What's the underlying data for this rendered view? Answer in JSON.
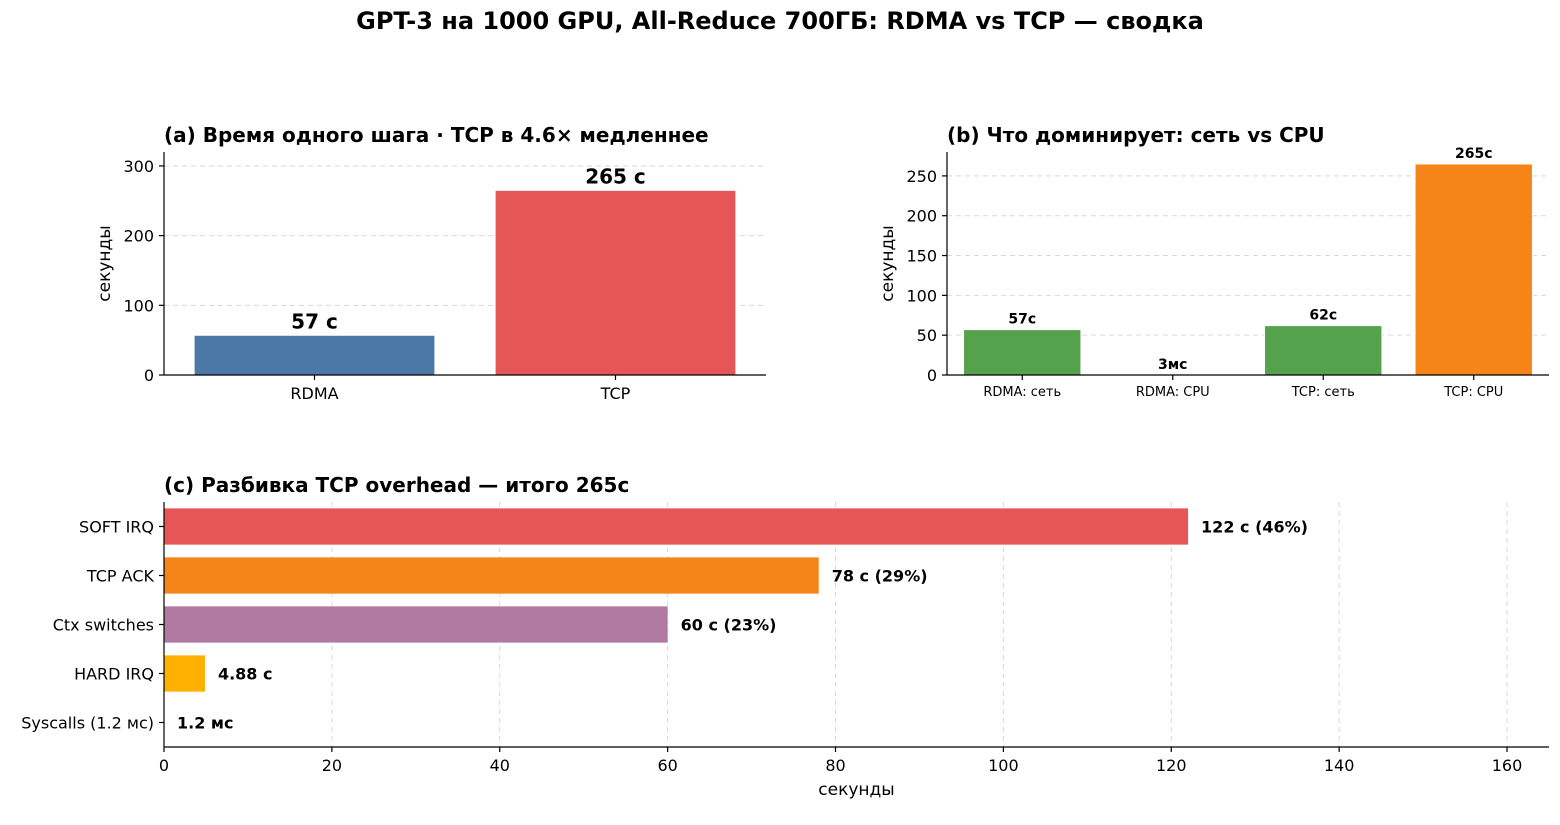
{
  "title": "GPT-3 на 1000 GPU, All-Reduce 700ГБ: RDMA vs TCP — сводка",
  "chart_data": [
    {
      "type": "bar",
      "title": "(a) Время одного шага  ·  TCP в 4.6× медленнее",
      "xlabel": "",
      "ylabel": "секунды",
      "categories": [
        "RDMA",
        "TCP"
      ],
      "values": [
        57,
        265
      ],
      "value_labels": [
        "57 с",
        "265 с"
      ],
      "colors": [
        "#4c78a8",
        "#e45756"
      ],
      "ylim": [
        0,
        320
      ],
      "yticks": [
        0,
        100,
        200,
        300
      ],
      "grid": true
    },
    {
      "type": "bar",
      "title": "(b) Что доминирует: сеть vs CPU",
      "xlabel": "",
      "ylabel": "секунды",
      "categories": [
        "RDMA: сеть",
        "RDMA: CPU",
        "TCP: сеть",
        "TCP: CPU"
      ],
      "values": [
        57,
        0.003,
        62,
        265
      ],
      "value_labels": [
        "57с",
        "3мс",
        "62с",
        "265с"
      ],
      "colors": [
        "#54a24b",
        "#54a24b",
        "#54a24b",
        "#f58518"
      ],
      "ylim": [
        0,
        280
      ],
      "yticks": [
        0,
        50,
        100,
        150,
        200,
        250
      ],
      "grid": true
    },
    {
      "type": "bar",
      "orientation": "horizontal",
      "title": "(c) Разбивка TCP overhead — итого 265с",
      "xlabel": "секунды",
      "ylabel": "",
      "categories": [
        "SOFT IRQ",
        "TCP ACK",
        "Ctx switches",
        "HARD IRQ",
        "Syscalls (1.2 мс)"
      ],
      "values": [
        122,
        78,
        60,
        4.88,
        0.0012
      ],
      "value_labels": [
        "122 с  (46%)",
        "78 с  (29%)",
        "60 с  (23%)",
        "4.88 с",
        "1.2 мс"
      ],
      "colors": [
        "#e45756",
        "#f58518",
        "#b279a2",
        "#ffb000",
        "#9e9e9e"
      ],
      "xlim": [
        0,
        165
      ],
      "xticks": [
        0,
        20,
        40,
        60,
        80,
        100,
        120,
        140,
        160
      ],
      "grid": true
    }
  ]
}
